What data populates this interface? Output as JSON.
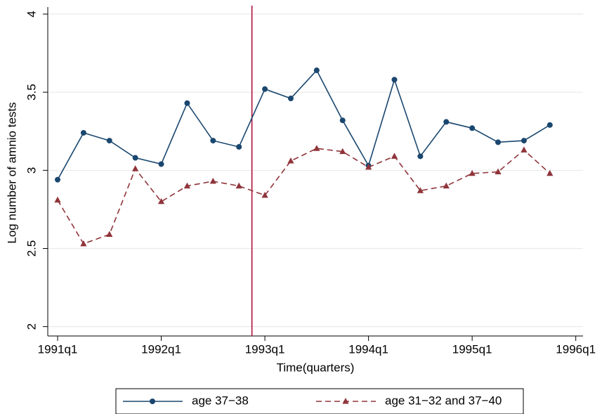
{
  "chart_data": {
    "type": "line",
    "xlabel": "Time(quarters)",
    "ylabel": "Log number of amnio tests",
    "x": [
      1991,
      1991.25,
      1991.5,
      1991.75,
      1992,
      1992.25,
      1992.5,
      1992.75,
      1993,
      1993.25,
      1993.5,
      1993.75,
      1994,
      1994.25,
      1994.5,
      1994.75,
      1995,
      1995.25,
      1995.5,
      1995.75
    ],
    "series": [
      {
        "name": "age 37−38",
        "color": "#1a476f",
        "marker": "circle",
        "dashed": false,
        "values": [
          2.94,
          3.24,
          3.19,
          3.08,
          3.04,
          3.43,
          3.19,
          3.15,
          3.52,
          3.46,
          3.64,
          3.32,
          3.03,
          3.58,
          3.09,
          3.31,
          3.27,
          3.18,
          3.19,
          3.29
        ]
      },
      {
        "name": "age 31−32 and 37−40",
        "color": "#90353b",
        "marker": "triangle",
        "dashed": true,
        "values": [
          2.81,
          2.53,
          2.59,
          3.01,
          2.8,
          2.9,
          2.93,
          2.9,
          2.84,
          3.06,
          3.14,
          3.12,
          3.02,
          3.09,
          2.87,
          2.9,
          2.98,
          2.99,
          3.13,
          2.98
        ]
      }
    ],
    "xlim": [
      1990.905,
      1996.07
    ],
    "xticks": [
      {
        "value": 1991,
        "label": "1991q1"
      },
      {
        "value": 1992,
        "label": "1992q1"
      },
      {
        "value": 1993,
        "label": "1993q1"
      },
      {
        "value": 1994,
        "label": "1994q1"
      },
      {
        "value": 1995,
        "label": "1995q1"
      },
      {
        "value": 1996,
        "label": "1996q1"
      }
    ],
    "ylim": [
      1.94,
      4.045
    ],
    "yticks": [
      2,
      2.5,
      3,
      3.5,
      4
    ],
    "grid": true,
    "vline": {
      "value": 1992.875,
      "color": "#b0103a"
    },
    "legend": "bottom"
  }
}
